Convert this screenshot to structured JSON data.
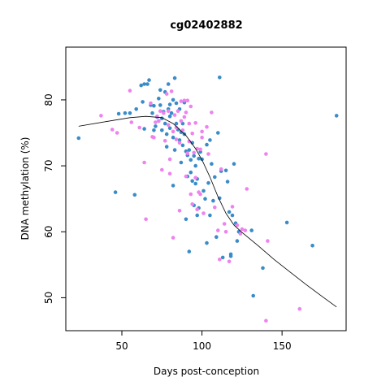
{
  "chart_data": {
    "type": "scatter",
    "title": "cg02402882",
    "xlabel": "Days post-conception",
    "ylabel": "DNA methylation (%)",
    "xlim": [
      15,
      190
    ],
    "ylim": [
      45,
      88
    ],
    "xticks": [
      50,
      100,
      150
    ],
    "yticks": [
      50,
      60,
      70,
      80
    ],
    "grid": false,
    "legend": "none",
    "colors": {
      "blue": "#3a8cc8",
      "pink": "#ee82ee",
      "line": "#000000"
    },
    "series": [
      {
        "color": "blue",
        "points": [
          [
            23,
            74.2
          ],
          [
            46,
            66.0
          ],
          [
            48,
            77.9
          ],
          [
            52,
            78.0
          ],
          [
            55,
            78.0
          ],
          [
            58,
            65.6
          ],
          [
            59,
            78.6
          ],
          [
            62,
            82.2
          ],
          [
            63,
            79.7
          ],
          [
            64,
            75.6
          ],
          [
            64,
            82.4
          ],
          [
            66,
            82.4
          ],
          [
            67,
            83.0
          ],
          [
            68,
            79.2
          ],
          [
            69,
            78.0
          ],
          [
            70,
            79.1
          ],
          [
            70,
            75.4
          ],
          [
            71,
            76.0
          ],
          [
            72,
            77.4
          ],
          [
            73,
            80.2
          ],
          [
            73,
            76.8
          ],
          [
            74,
            81.5
          ],
          [
            74,
            79.2
          ],
          [
            75,
            77.2
          ],
          [
            75,
            75.4
          ],
          [
            76,
            78.2
          ],
          [
            77,
            81.2
          ],
          [
            77,
            76.4
          ],
          [
            78,
            74.8
          ],
          [
            78,
            72.9
          ],
          [
            79,
            78.6
          ],
          [
            79,
            82.4
          ],
          [
            80,
            79.3
          ],
          [
            80,
            75.7
          ],
          [
            80,
            77.5
          ],
          [
            81,
            78.0
          ],
          [
            82,
            80.0
          ],
          [
            82,
            74.3
          ],
          [
            82,
            67.0
          ],
          [
            83,
            83.3
          ],
          [
            83,
            72.4
          ],
          [
            84,
            79.5
          ],
          [
            84,
            76.4
          ],
          [
            85,
            75.5
          ],
          [
            86,
            73.9
          ],
          [
            86,
            78.6
          ],
          [
            87,
            70.5
          ],
          [
            87,
            75.1
          ],
          [
            88,
            76.4
          ],
          [
            88,
            73.1
          ],
          [
            89,
            74.8
          ],
          [
            89,
            79.6
          ],
          [
            90,
            72.2
          ],
          [
            90,
            61.9
          ],
          [
            91,
            71.6
          ],
          [
            91,
            68.4
          ],
          [
            92,
            72.4
          ],
          [
            92,
            57.0
          ],
          [
            93,
            70.9
          ],
          [
            93,
            69.0
          ],
          [
            94,
            73.5
          ],
          [
            94,
            67.7
          ],
          [
            95,
            71.5
          ],
          [
            95,
            64.0
          ],
          [
            96,
            70.0
          ],
          [
            96,
            67.3
          ],
          [
            97,
            62.5
          ],
          [
            97,
            68.0
          ],
          [
            98,
            71.1
          ],
          [
            98,
            63.6
          ],
          [
            99,
            72.1
          ],
          [
            100,
            71.0
          ],
          [
            101,
            66.2
          ],
          [
            102,
            65.0
          ],
          [
            103,
            73.2
          ],
          [
            103,
            58.3
          ],
          [
            104,
            67.4
          ],
          [
            105,
            73.9
          ],
          [
            105,
            62.5
          ],
          [
            106,
            70.3
          ],
          [
            107,
            64.7
          ],
          [
            108,
            68.3
          ],
          [
            109,
            59.2
          ],
          [
            110,
            75.0
          ],
          [
            111,
            83.4
          ],
          [
            111,
            65.1
          ],
          [
            112,
            69.2
          ],
          [
            113,
            56.1
          ],
          [
            115,
            69.3
          ],
          [
            116,
            67.6
          ],
          [
            117,
            63.0
          ],
          [
            118,
            56.6
          ],
          [
            118,
            56.3
          ],
          [
            119,
            62.5
          ],
          [
            120,
            70.3
          ],
          [
            121,
            61.3
          ],
          [
            122,
            58.6
          ],
          [
            123,
            60.0
          ],
          [
            131,
            60.2
          ],
          [
            132,
            50.3
          ],
          [
            138,
            54.5
          ],
          [
            153,
            61.4
          ],
          [
            169,
            57.9
          ],
          [
            184,
            77.6
          ]
        ]
      },
      {
        "color": "pink",
        "points": [
          [
            37,
            77.6
          ],
          [
            44,
            75.5
          ],
          [
            47,
            75.0
          ],
          [
            55,
            81.4
          ],
          [
            56,
            76.6
          ],
          [
            61,
            75.8
          ],
          [
            64,
            70.5
          ],
          [
            65,
            61.9
          ],
          [
            68,
            79.5
          ],
          [
            69,
            74.4
          ],
          [
            70,
            74.3
          ],
          [
            71,
            76.6
          ],
          [
            72,
            77.5
          ],
          [
            73,
            76.8
          ],
          [
            74,
            78.3
          ],
          [
            75,
            69.4
          ],
          [
            76,
            78.0
          ],
          [
            77,
            73.8
          ],
          [
            78,
            80.9
          ],
          [
            79,
            78.3
          ],
          [
            79,
            76.2
          ],
          [
            80,
            71.0
          ],
          [
            80,
            68.8
          ],
          [
            81,
            81.3
          ],
          [
            82,
            75.2
          ],
          [
            82,
            59.1
          ],
          [
            83,
            77.7
          ],
          [
            84,
            74.0
          ],
          [
            84,
            75.8
          ],
          [
            85,
            78.3
          ],
          [
            86,
            73.5
          ],
          [
            86,
            63.2
          ],
          [
            87,
            76.8
          ],
          [
            87,
            79.8
          ],
          [
            88,
            75.4
          ],
          [
            89,
            77.4
          ],
          [
            89,
            79.9
          ],
          [
            90,
            78.1
          ],
          [
            90,
            68.4
          ],
          [
            91,
            79.9
          ],
          [
            91,
            71.9
          ],
          [
            92,
            76.4
          ],
          [
            92,
            73.7
          ],
          [
            93,
            79.0
          ],
          [
            93,
            65.7
          ],
          [
            94,
            74.9
          ],
          [
            94,
            64.2
          ],
          [
            95,
            72.0
          ],
          [
            96,
            76.5
          ],
          [
            96,
            68.2
          ],
          [
            97,
            72.6
          ],
          [
            97,
            63.4
          ],
          [
            98,
            66.0
          ],
          [
            99,
            72.5
          ],
          [
            99,
            65.7
          ],
          [
            100,
            75.2
          ],
          [
            100,
            74.3
          ],
          [
            101,
            62.8
          ],
          [
            103,
            75.9
          ],
          [
            104,
            71.8
          ],
          [
            106,
            78.1
          ],
          [
            108,
            63.7
          ],
          [
            110,
            60.2
          ],
          [
            111,
            55.8
          ],
          [
            112,
            69.5
          ],
          [
            114,
            61.2
          ],
          [
            115,
            60.0
          ],
          [
            117,
            55.5
          ],
          [
            119,
            63.8
          ],
          [
            122,
            61.0
          ],
          [
            124,
            59.7
          ],
          [
            125,
            60.4
          ],
          [
            127,
            60.2
          ],
          [
            128,
            66.5
          ],
          [
            140,
            71.8
          ],
          [
            140,
            46.5
          ],
          [
            141,
            58.6
          ],
          [
            161,
            48.3
          ]
        ]
      }
    ],
    "trend_line": [
      [
        23,
        76.0
      ],
      [
        40,
        76.7
      ],
      [
        55,
        77.3
      ],
      [
        65,
        77.5
      ],
      [
        75,
        77.3
      ],
      [
        82,
        76.4
      ],
      [
        90,
        74.6
      ],
      [
        96,
        72.6
      ],
      [
        100,
        70.9
      ],
      [
        105,
        68.3
      ],
      [
        110,
        65.3
      ],
      [
        115,
        62.8
      ],
      [
        120,
        61.0
      ],
      [
        125,
        59.9
      ],
      [
        135,
        57.9
      ],
      [
        145,
        55.8
      ],
      [
        155,
        53.9
      ],
      [
        165,
        52.0
      ],
      [
        175,
        50.2
      ],
      [
        184,
        48.6
      ]
    ]
  }
}
